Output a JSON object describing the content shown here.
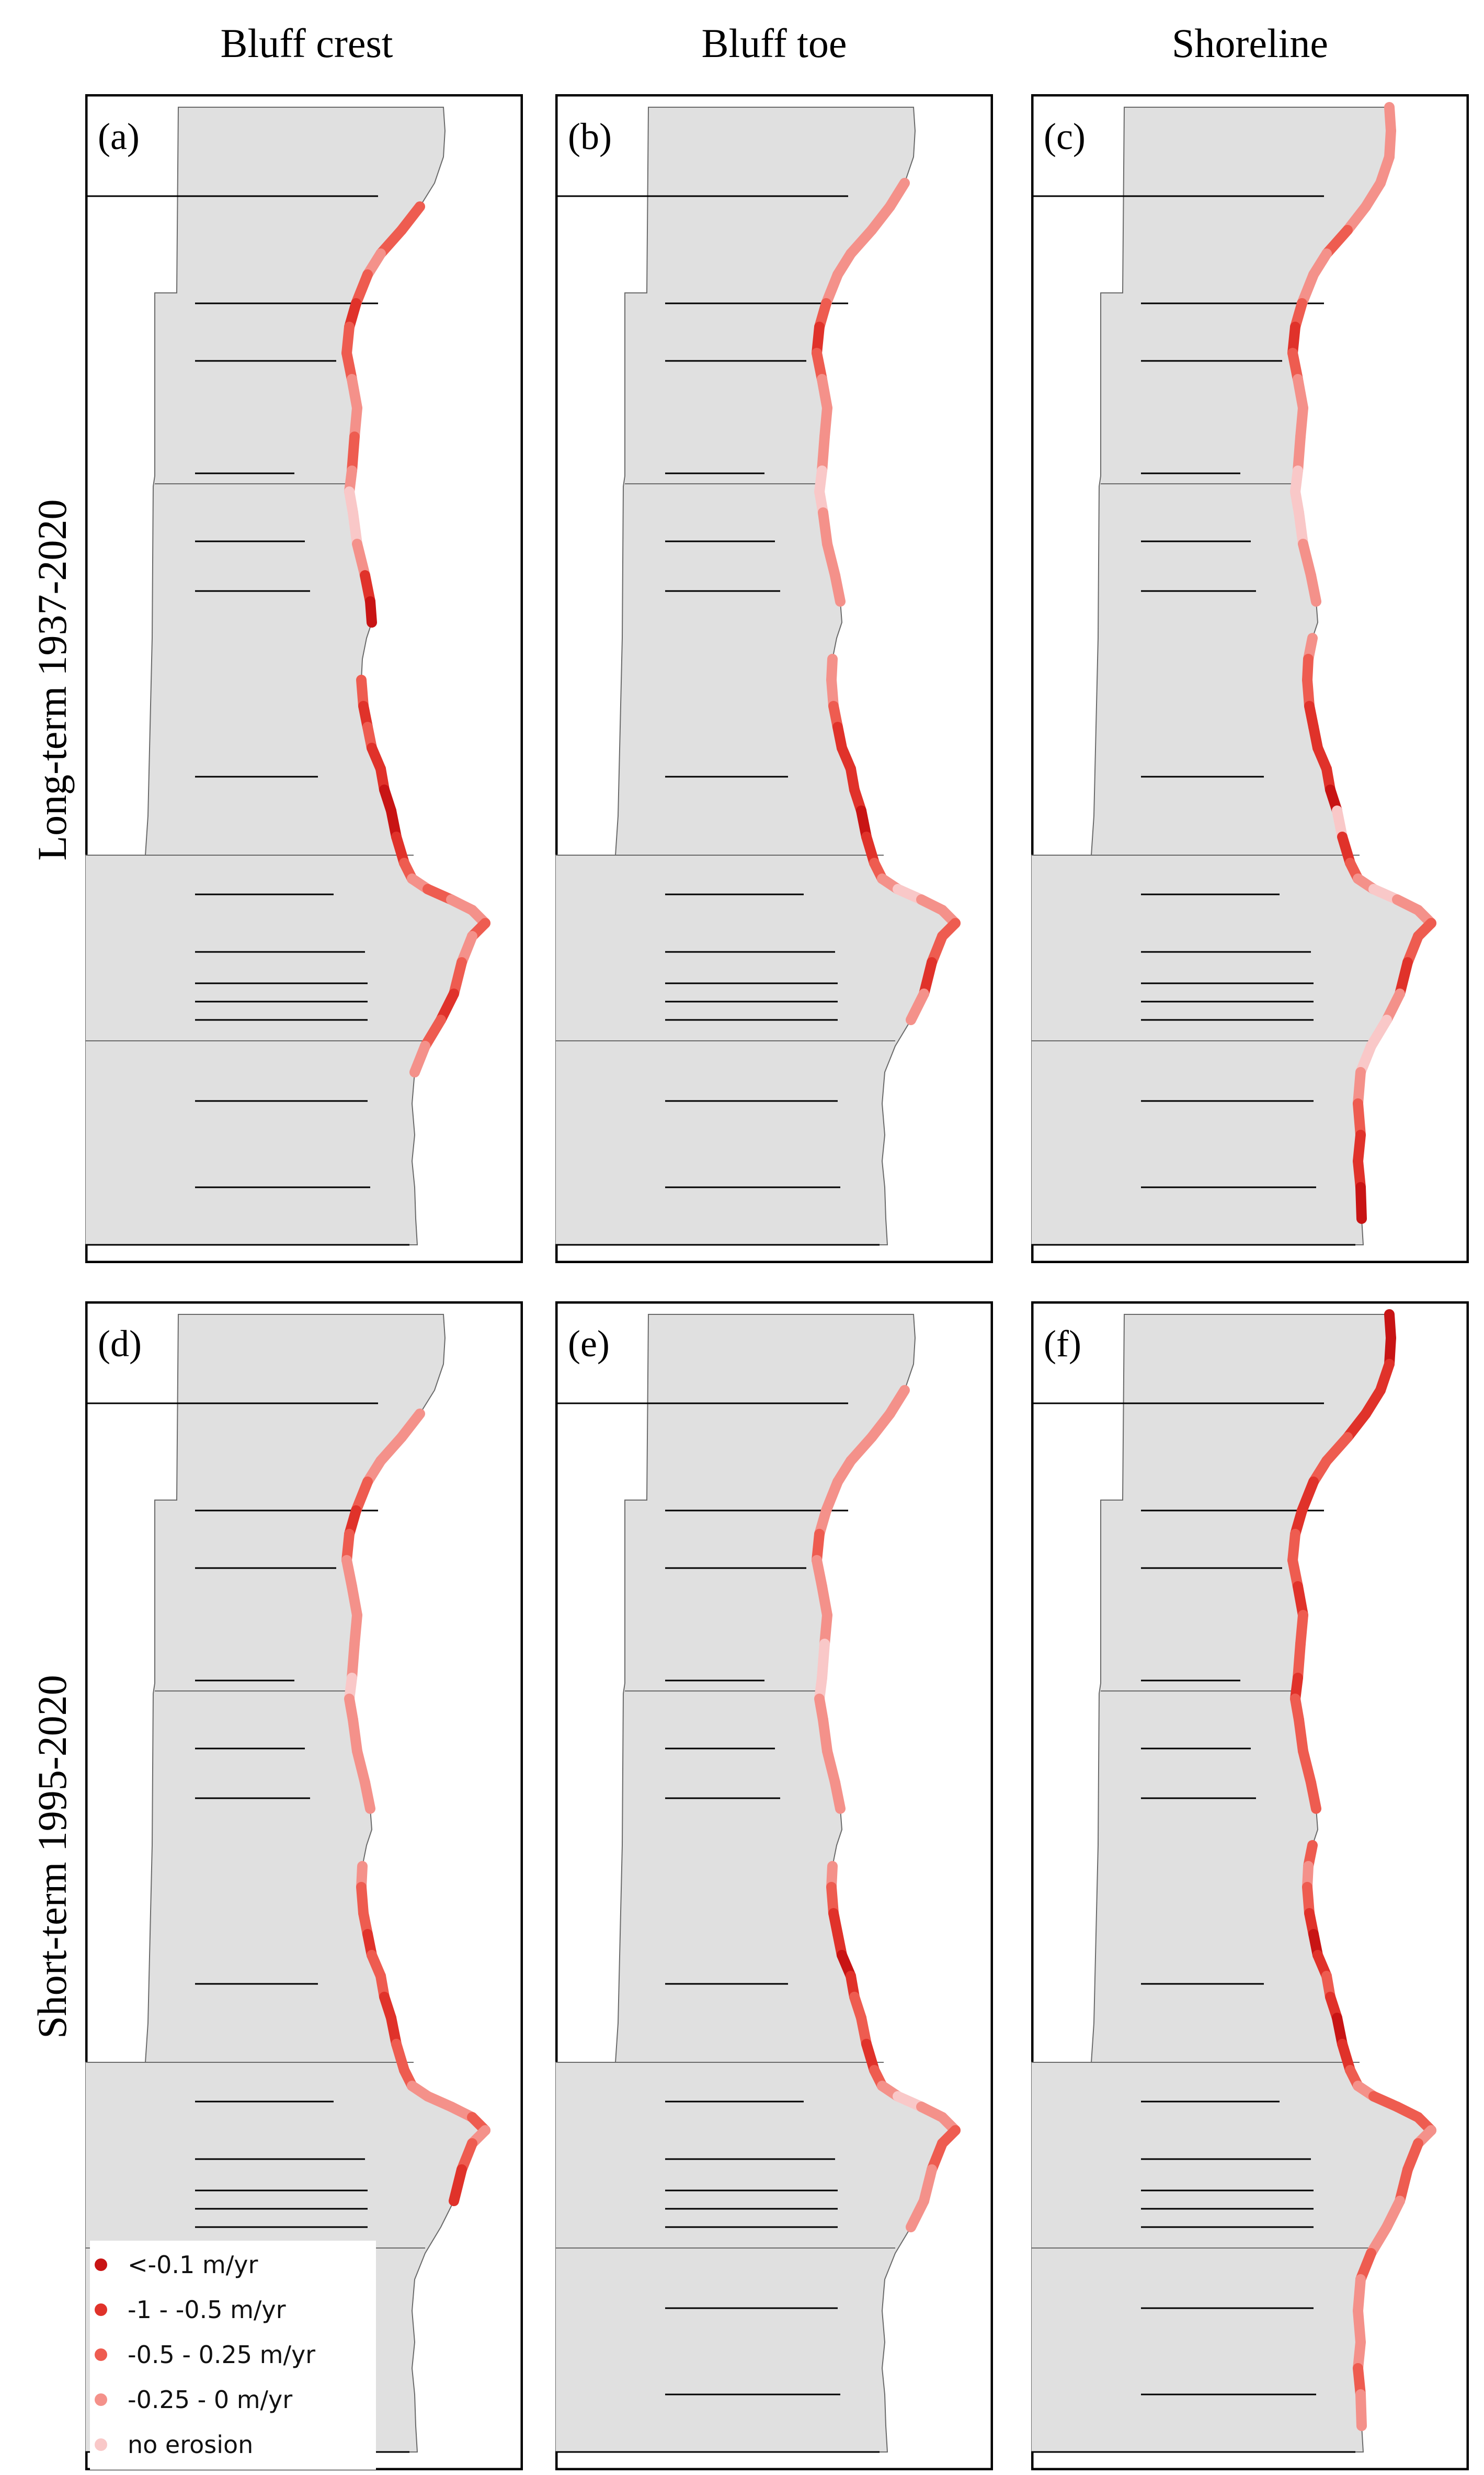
{
  "columns": [
    "Bluff crest",
    "Bluff toe",
    "Shoreline"
  ],
  "rows": [
    "Long-term 1937-2020",
    "Short-term 1995-2020"
  ],
  "panels": [
    {
      "letter": "(a)",
      "col": 0,
      "row": 0
    },
    {
      "letter": "(b)",
      "col": 1,
      "row": 0
    },
    {
      "letter": "(c)",
      "col": 2,
      "row": 0
    },
    {
      "letter": "(d)",
      "col": 0,
      "row": 1
    },
    {
      "letter": "(e)",
      "col": 1,
      "row": 1
    },
    {
      "letter": "(f)",
      "col": 2,
      "row": 1
    }
  ],
  "legend": {
    "items": [
      {
        "label": "<-0.1 m/yr",
        "color": "#c81414"
      },
      {
        "label": "-1 - -0.5 m/yr",
        "color": "#e0322a"
      },
      {
        "label": "-0.5 - 0.25 m/yr",
        "color": "#ee5c50"
      },
      {
        "label": "-0.25 - 0 m/yr",
        "color": "#f4918a"
      },
      {
        "label": "no erosion",
        "color": "#f9c8c8"
      }
    ]
  },
  "colors": {
    "land": "#e0e0e0",
    "land_outline": "#6a6a6a",
    "frame": "#000000",
    "transect": "#000000"
  }
}
